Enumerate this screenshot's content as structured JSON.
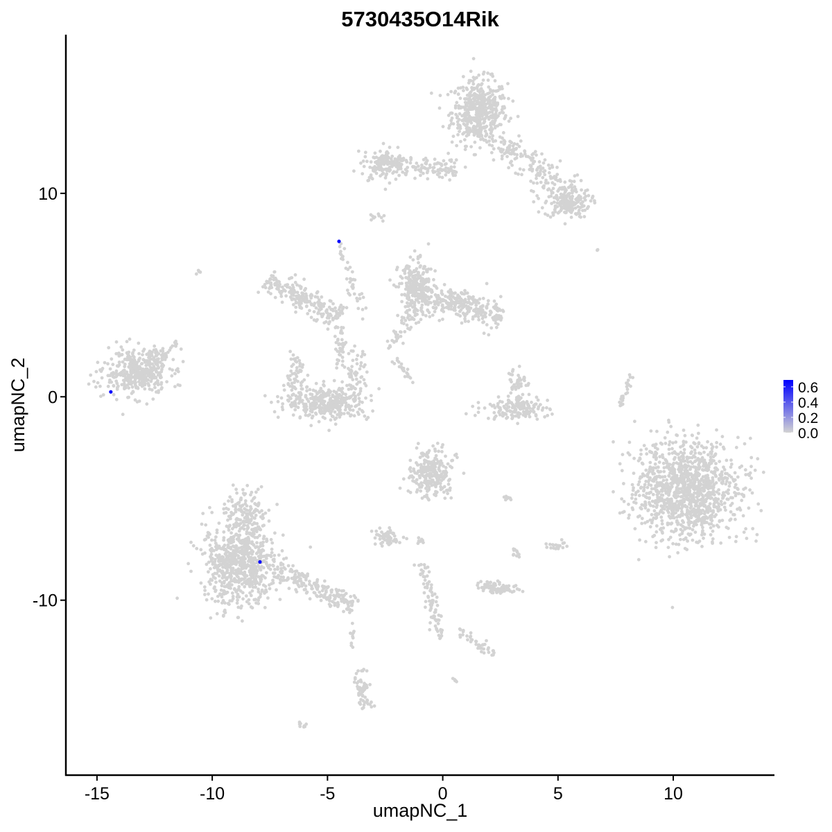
{
  "chart_data": {
    "type": "scatter",
    "title": "5730435O14Rik",
    "xlabel": "umapNC_1",
    "ylabel": "umapNC_2",
    "xlim": [
      -16.35,
      14.39
    ],
    "ylim": [
      -18.6,
      17.8
    ],
    "xticks": [
      -15,
      -10,
      -5,
      0,
      5,
      10
    ],
    "yticks": [
      -10,
      0,
      10
    ],
    "xtick_labels": [
      "-15",
      "-10",
      "-5",
      "0",
      "5",
      "10"
    ],
    "ytick_labels": [
      "-10",
      "0",
      "10"
    ],
    "grid": false,
    "colors": {
      "low": "#d3d3d3",
      "high": "#0000ff"
    },
    "colorbar": {
      "position": "right",
      "range": [
        0,
        0.69
      ],
      "ticks": [
        0.0,
        0.2,
        0.4,
        0.6
      ],
      "tick_labels": [
        "0.0",
        "0.2",
        "0.4",
        "0.6"
      ]
    },
    "background_clusters": [
      {
        "kind": "blob",
        "cx": 1.6,
        "cy": 14.0,
        "sx": 0.6,
        "sy": 0.8,
        "n": 500
      },
      {
        "kind": "line",
        "x0": 2.5,
        "y0": 12.5,
        "x1": 5.8,
        "y1": 9.5,
        "w": 0.4,
        "n": 200
      },
      {
        "kind": "blob",
        "cx": 5.4,
        "cy": 9.5,
        "sx": 0.5,
        "sy": 0.35,
        "n": 150
      },
      {
        "kind": "line",
        "x0": -3.0,
        "y0": 11.6,
        "x1": 0.6,
        "y1": 11.1,
        "w": 0.25,
        "n": 150
      },
      {
        "kind": "blob",
        "cx": -2.6,
        "cy": 11.4,
        "sx": 0.4,
        "sy": 0.4,
        "n": 100
      },
      {
        "kind": "blob",
        "cx": -13.3,
        "cy": 1.2,
        "sx": 0.7,
        "sy": 0.55,
        "n": 400
      },
      {
        "kind": "line",
        "x0": -12.8,
        "y0": 1.5,
        "x1": -11.5,
        "y1": 2.7,
        "w": 0.2,
        "n": 40
      },
      {
        "kind": "line",
        "x0": -7.6,
        "y0": 5.8,
        "x1": -4.5,
        "y1": 3.8,
        "w": 0.3,
        "n": 220
      },
      {
        "kind": "line",
        "x0": -4.5,
        "y0": 7.5,
        "x1": -3.4,
        "y1": 3.8,
        "w": 0.12,
        "n": 40
      },
      {
        "kind": "blob",
        "cx": -5.0,
        "cy": -0.3,
        "sx": 0.9,
        "sy": 0.4,
        "n": 350
      },
      {
        "kind": "blob",
        "cx": -6.4,
        "cy": 1.1,
        "sx": 0.2,
        "sy": 0.6,
        "n": 60
      },
      {
        "kind": "blob",
        "cx": -3.8,
        "cy": 1.0,
        "sx": 0.25,
        "sy": 0.6,
        "n": 60
      },
      {
        "kind": "line",
        "x0": -4.5,
        "y0": 3.5,
        "x1": -4.5,
        "y1": 1.4,
        "w": 0.15,
        "n": 40
      },
      {
        "kind": "blob",
        "cx": -1.1,
        "cy": 5.2,
        "sx": 0.4,
        "sy": 0.7,
        "n": 300
      },
      {
        "kind": "line",
        "x0": -0.3,
        "y0": 4.8,
        "x1": 2.6,
        "y1": 4.0,
        "w": 0.35,
        "n": 250
      },
      {
        "kind": "line",
        "x0": -1.5,
        "y0": 4.0,
        "x1": -2.3,
        "y1": 2.3,
        "w": 0.15,
        "n": 30
      },
      {
        "kind": "blob",
        "cx": 3.2,
        "cy": -0.6,
        "sx": 0.7,
        "sy": 0.25,
        "n": 150
      },
      {
        "kind": "blob",
        "cx": 3.2,
        "cy": 0.7,
        "sx": 0.2,
        "sy": 0.5,
        "n": 50
      },
      {
        "kind": "line",
        "x0": 8.2,
        "y0": 1.1,
        "x1": 7.6,
        "y1": -0.6,
        "w": 0.08,
        "n": 25
      },
      {
        "kind": "blob",
        "cx": 10.6,
        "cy": -4.6,
        "sx": 1.1,
        "sy": 1.2,
        "n": 1200
      },
      {
        "kind": "blob",
        "cx": -0.5,
        "cy": -3.8,
        "sx": 0.45,
        "sy": 0.6,
        "n": 250
      },
      {
        "kind": "blob",
        "cx": -8.8,
        "cy": -8.2,
        "sx": 0.8,
        "sy": 1.0,
        "n": 700
      },
      {
        "kind": "blob",
        "cx": -8.5,
        "cy": -6.0,
        "sx": 0.4,
        "sy": 0.7,
        "n": 150
      },
      {
        "kind": "line",
        "x0": -7.2,
        "y0": -8.5,
        "x1": -3.8,
        "y1": -10.3,
        "w": 0.25,
        "n": 200
      },
      {
        "kind": "blob",
        "cx": -2.4,
        "cy": -6.9,
        "sx": 0.3,
        "sy": 0.2,
        "n": 60
      },
      {
        "kind": "blob",
        "cx": 2.4,
        "cy": -9.4,
        "sx": 0.4,
        "sy": 0.15,
        "n": 80
      },
      {
        "kind": "line",
        "x0": -0.9,
        "y0": -8.2,
        "x1": -0.1,
        "y1": -12.0,
        "w": 0.15,
        "n": 80
      },
      {
        "kind": "line",
        "x0": 0.6,
        "y0": -11.5,
        "x1": 2.3,
        "y1": -12.7,
        "w": 0.12,
        "n": 40
      },
      {
        "kind": "line",
        "x0": -3.6,
        "y0": -13.4,
        "x1": -3.3,
        "y1": -15.3,
        "w": 0.15,
        "n": 60
      },
      {
        "kind": "blob",
        "cx": 4.9,
        "cy": -7.3,
        "sx": 0.2,
        "sy": 0.1,
        "n": 20
      },
      {
        "kind": "blob",
        "cx": -1.0,
        "cy": -7.0,
        "sx": 0.1,
        "sy": 0.15,
        "n": 10
      },
      {
        "kind": "blob",
        "cx": 3.2,
        "cy": -7.6,
        "sx": 0.1,
        "sy": 0.15,
        "n": 10
      },
      {
        "kind": "blob",
        "cx": -2.8,
        "cy": 8.8,
        "sx": 0.15,
        "sy": 0.1,
        "n": 10
      },
      {
        "kind": "blob",
        "cx": -10.6,
        "cy": 6.1,
        "sx": 0.05,
        "sy": 0.05,
        "n": 5
      },
      {
        "kind": "blob",
        "cx": -6.1,
        "cy": -16.1,
        "sx": 0.1,
        "sy": 0.05,
        "n": 8
      },
      {
        "kind": "blob",
        "cx": 0.5,
        "cy": -14.0,
        "sx": 0.08,
        "sy": 0.05,
        "n": 5
      },
      {
        "kind": "blob",
        "cx": 2.8,
        "cy": -5.0,
        "sx": 0.1,
        "sy": 0.1,
        "n": 8
      },
      {
        "kind": "blob",
        "cx": -3.9,
        "cy": -11.9,
        "sx": 0.05,
        "sy": 0.3,
        "n": 10
      },
      {
        "kind": "line",
        "x0": -2.1,
        "y0": 1.8,
        "x1": -1.2,
        "y1": 0.7,
        "w": 0.08,
        "n": 20
      },
      {
        "kind": "blob",
        "cx": 6.7,
        "cy": 7.2,
        "sx": 0.03,
        "sy": 0.03,
        "n": 2
      }
    ],
    "expressing_points": [
      {
        "x": -4.5,
        "y": 7.64,
        "value": 0.65
      },
      {
        "x": -14.4,
        "y": 0.24,
        "value": 0.65
      },
      {
        "x": -7.93,
        "y": -8.12,
        "value": 0.65
      }
    ]
  }
}
